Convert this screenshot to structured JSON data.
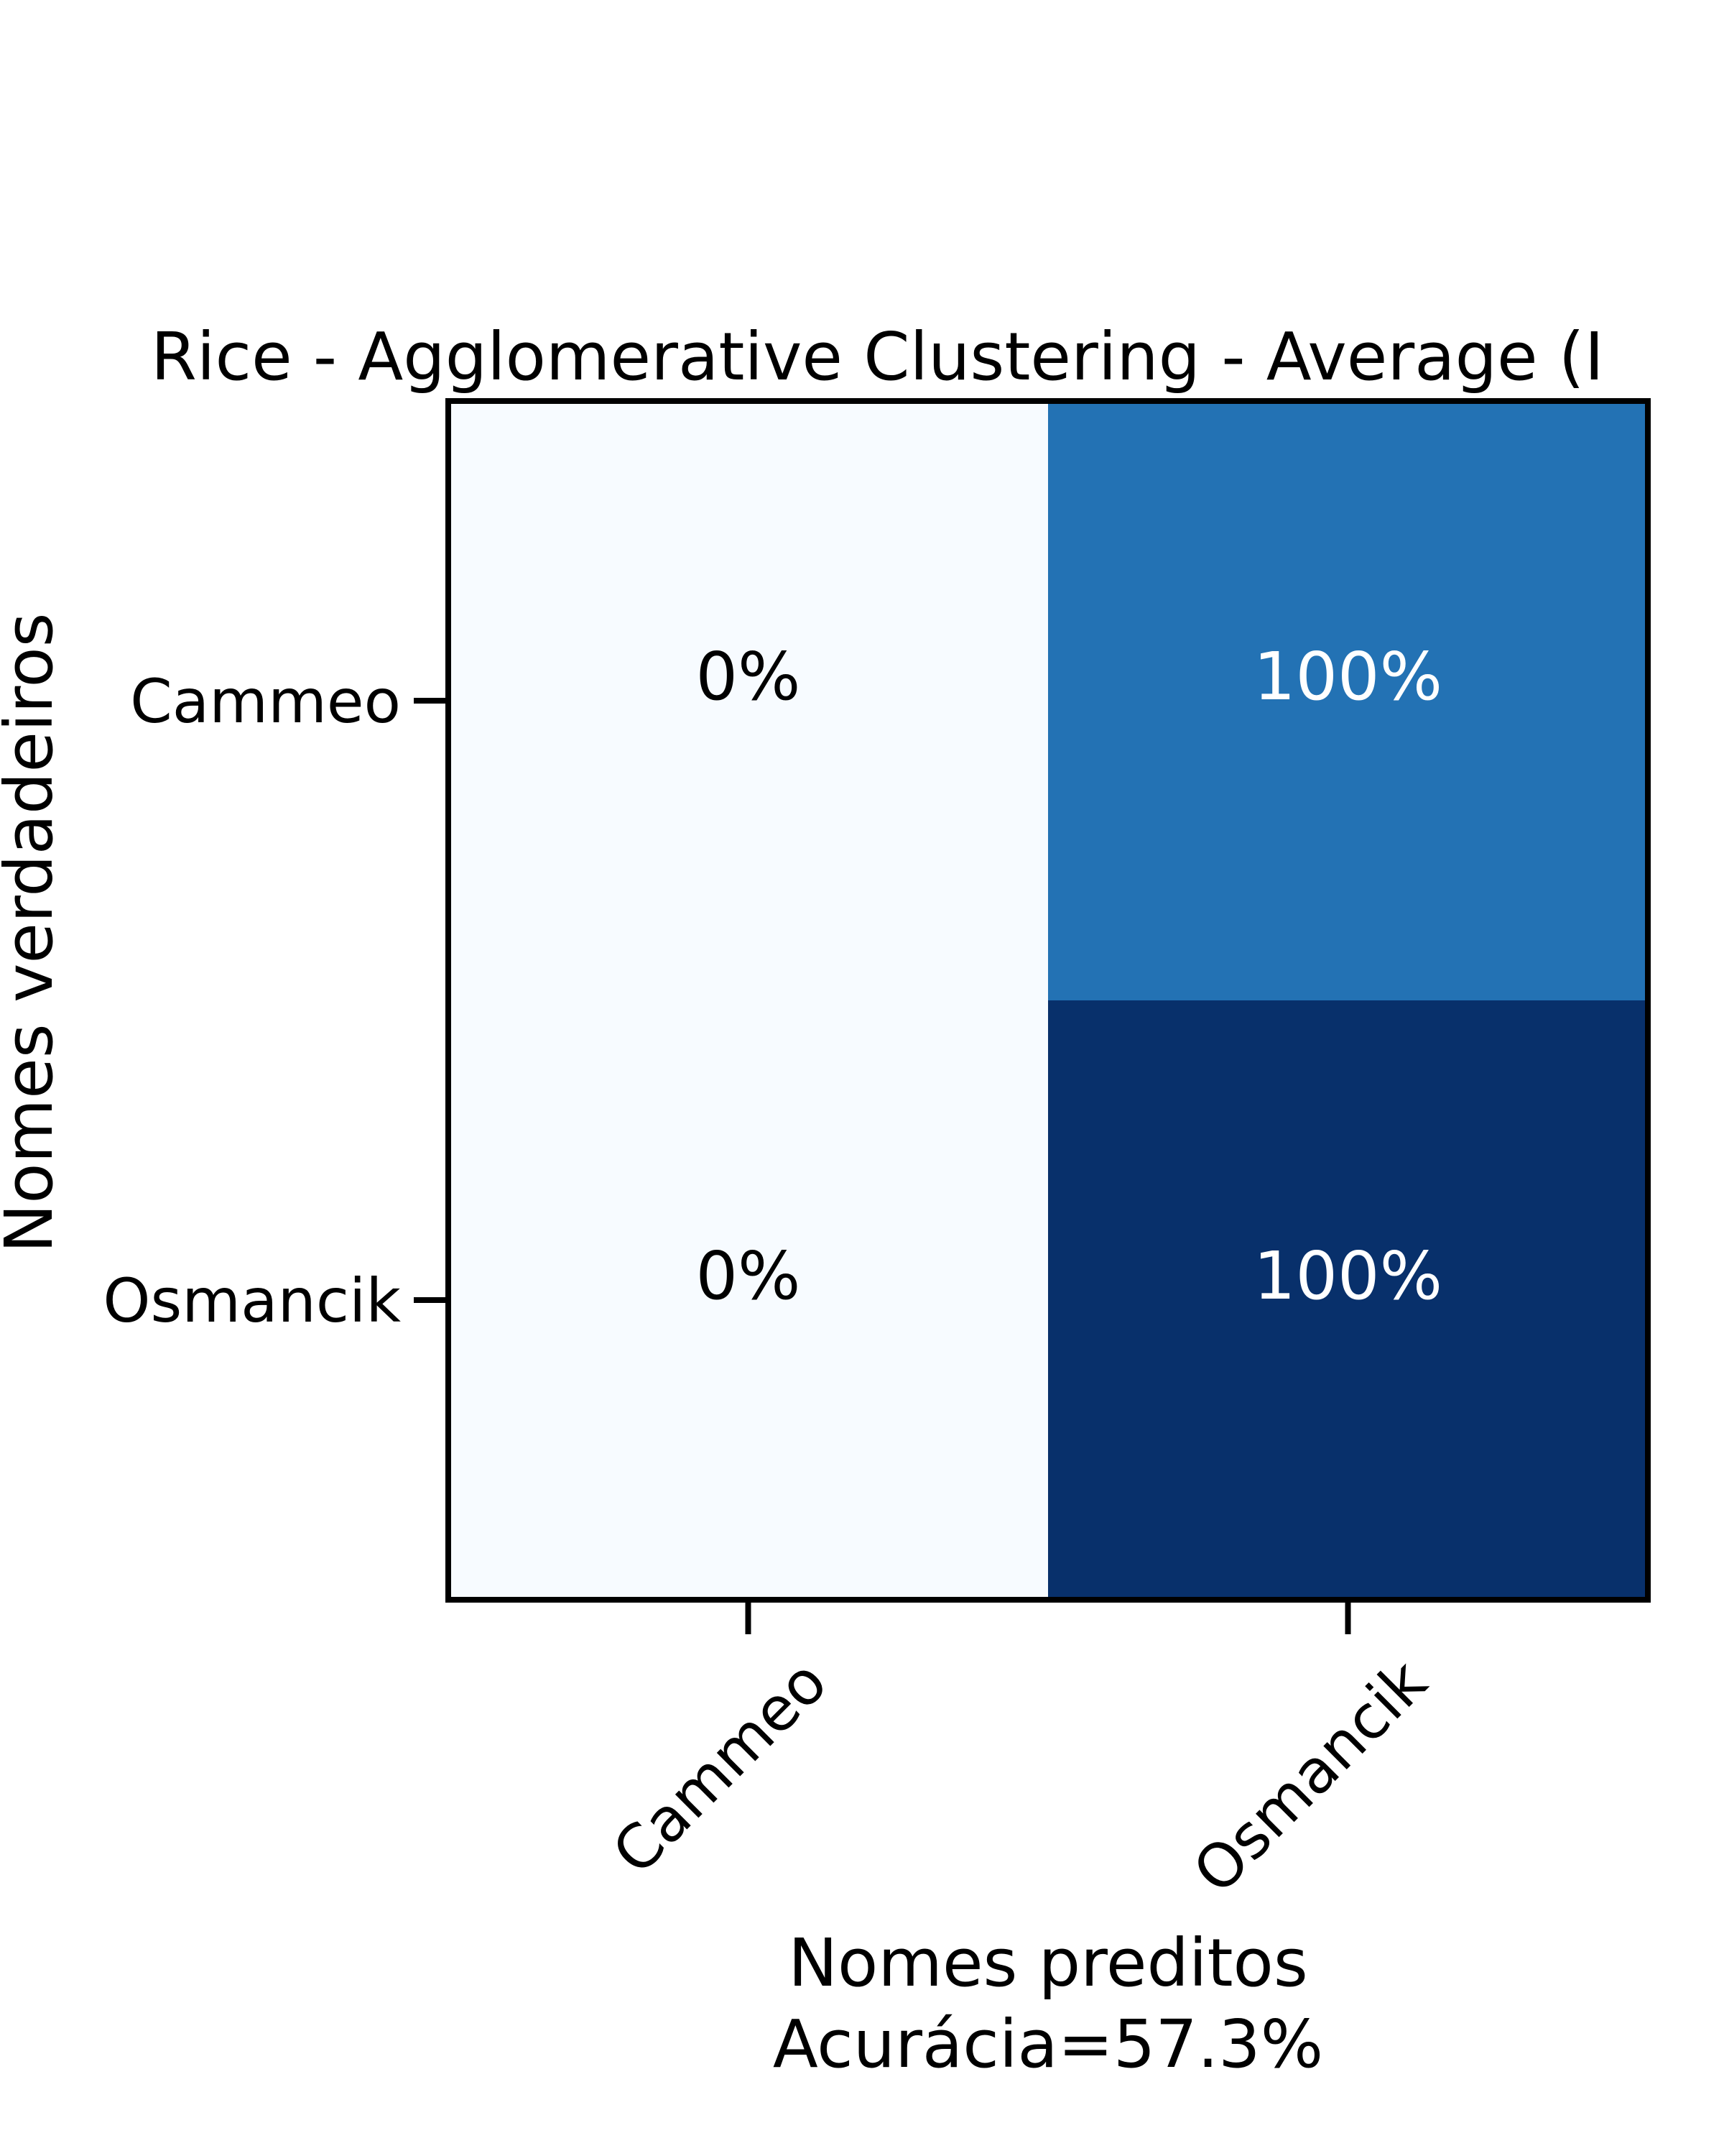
{
  "chart_data": {
    "type": "heatmap",
    "title": "Rice - Agglomerative Clustering - Average (I",
    "xlabel": "Nomes preditos",
    "xlabel_sub": "Acurácia=57.3%",
    "ylabel": "Nomes verdadeiros",
    "x_categories": [
      "Cammeo",
      "Osmancik"
    ],
    "y_categories": [
      "Cammeo",
      "Osmancik"
    ],
    "values": [
      [
        0,
        100
      ],
      [
        0,
        100
      ]
    ],
    "cell_labels": [
      [
        "0%",
        "100%"
      ],
      [
        "0%",
        "100%"
      ]
    ],
    "cell_colors": [
      [
        "#f7fbff",
        "#2372b4"
      ],
      [
        "#f7fbff",
        "#08306b"
      ]
    ],
    "label_colors": [
      [
        "#000000",
        "#ffffff"
      ],
      [
        "#000000",
        "#ffffff"
      ]
    ],
    "colormap": "Blues",
    "grid": false
  }
}
